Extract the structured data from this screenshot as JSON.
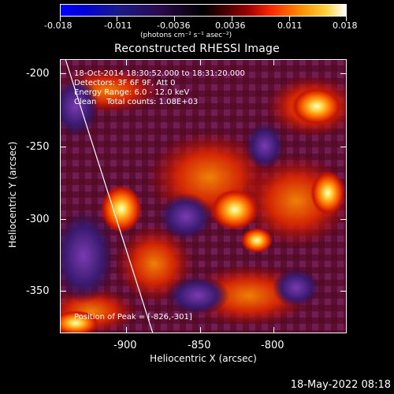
{
  "colorbar": {
    "tick_labels": [
      "-0.018",
      "-0.011",
      "-0.0036",
      "0.0036",
      "0.011",
      "0.018"
    ],
    "unit_label": "(photons cm⁻² s⁻¹ asec⁻²)"
  },
  "plot": {
    "title": "Reconstructed RHESSI Image",
    "info_lines": [
      "18-Oct-2014 18:30:52.000 to 18:31:20.000",
      "Detectors: 3F 6F 9F, Att 0",
      "Energy Range: 6.0 - 12.0 keV",
      "Clean    Total counts: 1.08E+03"
    ],
    "peak_text": "Position of Peak = [-826,-301]",
    "x_axis": {
      "title": "Heliocentric X (arcsec)",
      "tick_labels": [
        "-900",
        "-850",
        "-800"
      ]
    },
    "y_axis": {
      "title": "Heliocentric Y (arcsec)",
      "tick_labels": [
        "-200",
        "-250",
        "-300",
        "-350"
      ]
    }
  },
  "footer": {
    "timestamp": "18-May-2022 08:18"
  }
}
